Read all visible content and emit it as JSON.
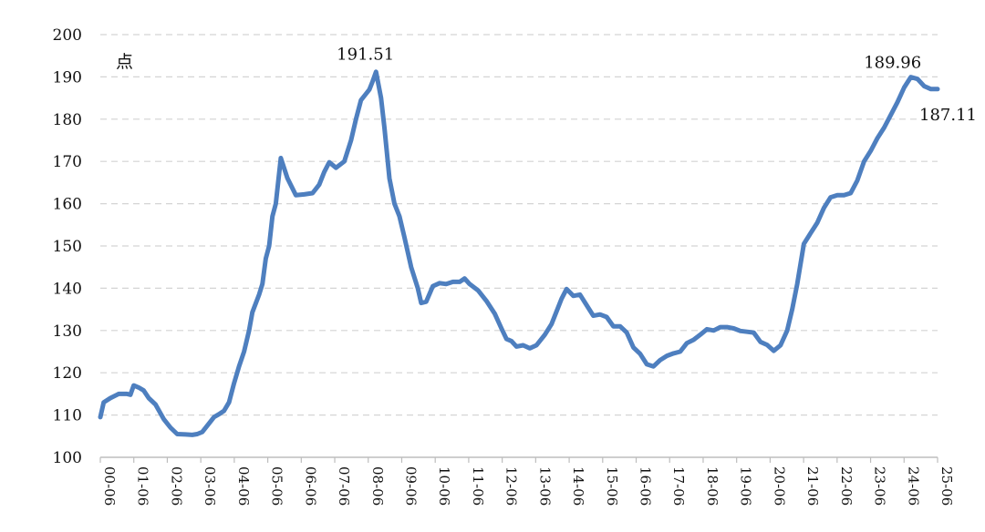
{
  "chart_data": {
    "type": "line",
    "title": "",
    "xlabel": "",
    "ylabel": "",
    "unit_label": "点",
    "ylim": [
      100,
      200
    ],
    "yticks": [
      100,
      110,
      120,
      130,
      140,
      150,
      160,
      170,
      180,
      190,
      200
    ],
    "x_tick_labels": [
      "00-06",
      "01-06",
      "02-06",
      "03-06",
      "04-06",
      "05-06",
      "06-06",
      "07-06",
      "08-06",
      "09-06",
      "10-06",
      "11-06",
      "12-06",
      "13-06",
      "14-06",
      "15-06",
      "16-06",
      "17-06",
      "18-06",
      "19-06",
      "20-06",
      "21-06",
      "22-06",
      "23-06",
      "24-06",
      "25-06"
    ],
    "grid": "horizontal dashed",
    "line_color": "#4e7fbf",
    "series": [
      {
        "name": "",
        "x": [
          2000.45,
          2000.55,
          2000.75,
          2001.0,
          2001.25,
          2001.35,
          2001.45,
          2001.6,
          2001.75,
          2001.9,
          2002.1,
          2002.35,
          2002.55,
          2002.75,
          2003.0,
          2003.2,
          2003.35,
          2003.5,
          2003.7,
          2003.85,
          2004.0,
          2004.15,
          2004.3,
          2004.45,
          2004.6,
          2004.75,
          2004.9,
          2005.0,
          2005.2,
          2005.3,
          2005.4,
          2005.5,
          2005.6,
          2005.7,
          2005.85,
          2006.05,
          2006.3,
          2006.55,
          2006.8,
          2007.0,
          2007.15,
          2007.3,
          2007.5,
          2007.75,
          2007.95,
          2008.1,
          2008.25,
          2008.4,
          2008.5,
          2008.6,
          2008.7,
          2008.85,
          2008.95,
          2009.1,
          2009.25,
          2009.4,
          2009.55,
          2009.75,
          2009.95,
          2010.05,
          2010.2,
          2010.4,
          2010.6,
          2010.8,
          2011.0,
          2011.2,
          2011.35,
          2011.5,
          2011.75,
          2012.0,
          2012.25,
          2012.45,
          2012.6,
          2012.75,
          2012.9,
          2013.1,
          2013.3,
          2013.5,
          2013.75,
          2013.95,
          2014.1,
          2014.25,
          2014.4,
          2014.6,
          2014.8,
          2015.0,
          2015.2,
          2015.4,
          2015.6,
          2015.8,
          2016.0,
          2016.2,
          2016.4,
          2016.6,
          2016.8,
          2017.0,
          2017.2,
          2017.4,
          2017.6,
          2017.8,
          2018.0,
          2018.2,
          2018.4,
          2018.6,
          2018.8,
          2019.0,
          2019.2,
          2019.4,
          2019.6,
          2019.8,
          2020.0,
          2020.2,
          2020.4,
          2020.6,
          2020.8,
          2021.0,
          2021.15,
          2021.3,
          2021.5,
          2021.7,
          2021.9,
          2022.1,
          2022.3,
          2022.5,
          2022.7,
          2022.9,
          2023.1,
          2023.3,
          2023.5,
          2023.7,
          2023.9,
          2024.1,
          2024.3,
          2024.5,
          2024.7,
          2024.9,
          2025.1,
          2025.3,
          2025.5
        ],
        "values": [
          109.5,
          113,
          114,
          115,
          115,
          114.8,
          117,
          116.5,
          115.8,
          114,
          112.5,
          109,
          107,
          105.5,
          105.4,
          105.3,
          105.5,
          106,
          108,
          109.5,
          110.2,
          111,
          113,
          117.5,
          121.5,
          125,
          130,
          134.3,
          138.5,
          141,
          147,
          150,
          157,
          160,
          170.8,
          166,
          162,
          162.2,
          162.5,
          164.5,
          167.5,
          169.8,
          168.5,
          170,
          175,
          180,
          184.5,
          186,
          187,
          189,
          191.2,
          185,
          178,
          166,
          160,
          157,
          152,
          145,
          140,
          136.5,
          136.8,
          140.5,
          141.2,
          141,
          141.5,
          141.5,
          142.3,
          141,
          139.5,
          137,
          134,
          130.5,
          128,
          127.5,
          126.2,
          126.5,
          125.8,
          126.5,
          129,
          131.5,
          134.5,
          137.5,
          139.8,
          138.2,
          138.5,
          136,
          133.5,
          133.8,
          133.2,
          131,
          131,
          129.5,
          126,
          124.5,
          122,
          121.5,
          123,
          124,
          124.6,
          125,
          127,
          127.8,
          129,
          130.3,
          130,
          130.8,
          130.8,
          130.5,
          129.9,
          129.7,
          129.5,
          127.3,
          126.6,
          125.2,
          126.5,
          130,
          135,
          141,
          150.5,
          153,
          155.5,
          159,
          161.5,
          162,
          162,
          162.5,
          165.5,
          170,
          172.5,
          175.5,
          178,
          181,
          184,
          187.5,
          189.96,
          189.5,
          187.8,
          187.11,
          187.11
        ]
      }
    ],
    "annotations": [
      {
        "text": "191.51",
        "x": 2008.6,
        "y": 191.51
      },
      {
        "text": "189.96",
        "x": 2024.7,
        "y": 189.96
      },
      {
        "text": "187.11",
        "x": 2025.5,
        "y": 187.11
      }
    ]
  }
}
